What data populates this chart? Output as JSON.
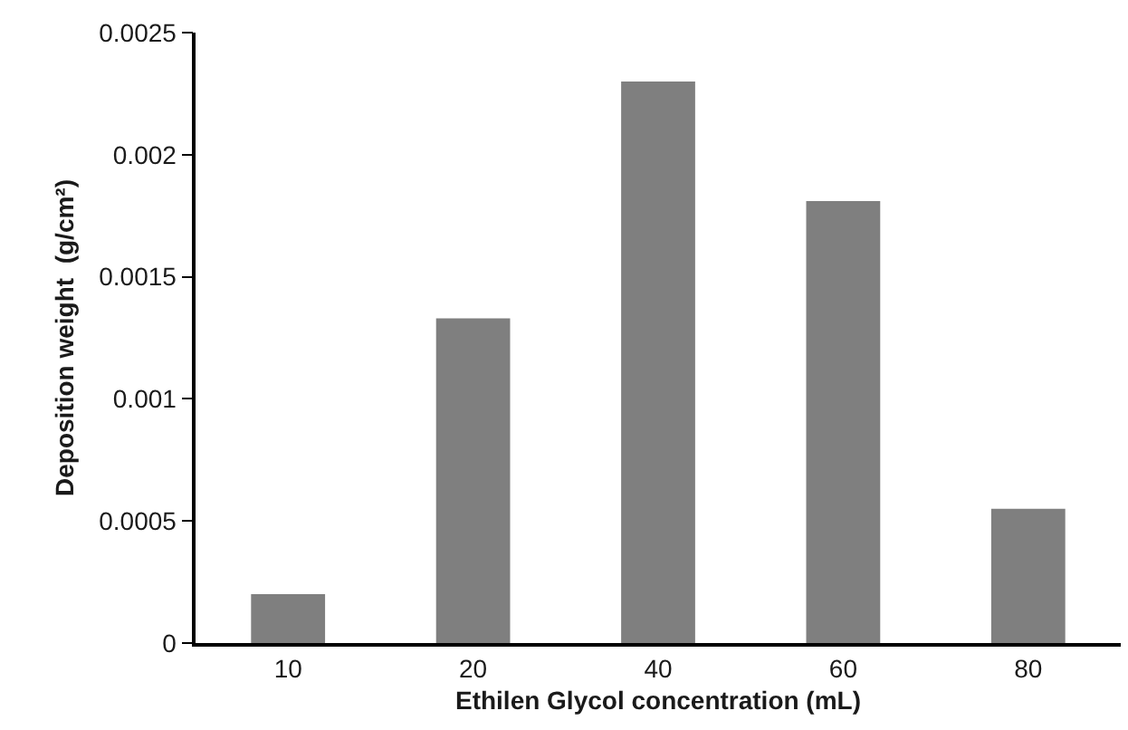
{
  "chart_data": {
    "type": "bar",
    "xlabel": "Ethilen Glycol concentration (mL)",
    "ylabel": "Deposition weight  (g/cm²)",
    "categories": [
      "10",
      "20",
      "40",
      "60",
      "80"
    ],
    "values": [
      0.0002,
      0.00133,
      0.0023,
      0.00181,
      0.00055
    ],
    "color": "#7f7f7f",
    "ylim": [
      0,
      0.0025
    ],
    "yticks": [
      0,
      0.0005,
      0.001,
      0.0015,
      0.002,
      0.0025
    ],
    "grid": false,
    "legend": false
  }
}
